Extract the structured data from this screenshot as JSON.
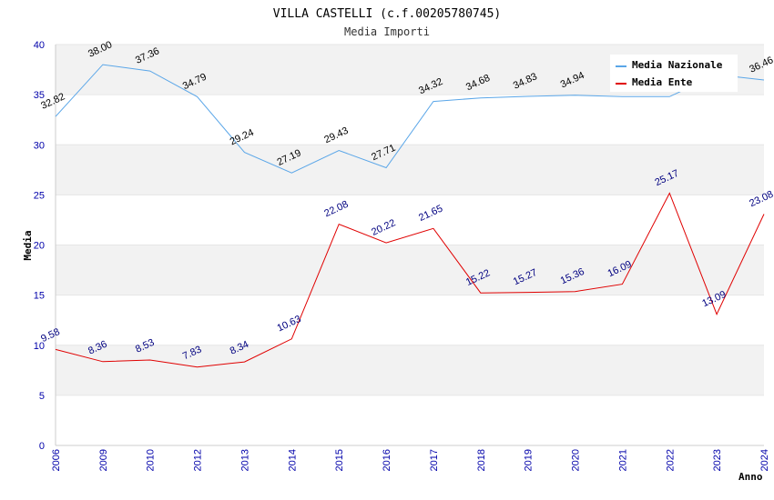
{
  "chart_data": {
    "type": "line",
    "title": "VILLA CASTELLI (c.f.00205780745)",
    "subtitle": "Media Importi",
    "ylabel": "Media",
    "xlabel": "Anno",
    "ylim": [
      0,
      40
    ],
    "yticks": [
      0,
      5,
      10,
      15,
      20,
      25,
      30,
      35,
      40
    ],
    "categories": [
      "2006",
      "2009",
      "2010",
      "2012",
      "2013",
      "2014",
      "2015",
      "2016",
      "2017",
      "2018",
      "2019",
      "2020",
      "2021",
      "2022",
      "2023",
      "2024"
    ],
    "series": [
      {
        "name": "Media Nazionale",
        "color": "#5aa6e8",
        "values": [
          32.82,
          38.0,
          37.36,
          34.79,
          29.24,
          27.19,
          29.43,
          27.71,
          34.32,
          34.68,
          34.83,
          34.94,
          34.8,
          34.8,
          37.0,
          36.46
        ],
        "labels": [
          "32.82",
          "38.00",
          "37.36",
          "34.79",
          "29.24",
          "27.19",
          "29.43",
          "27.71",
          "34.32",
          "34.68",
          "34.83",
          "34.94",
          "",
          "",
          "",
          "36.46"
        ]
      },
      {
        "name": "Media Ente",
        "color": "#e00000",
        "values": [
          9.58,
          8.36,
          8.53,
          7.83,
          8.34,
          10.63,
          22.08,
          20.22,
          21.65,
          15.22,
          15.27,
          15.36,
          16.09,
          25.17,
          13.09,
          23.08
        ],
        "labels": [
          "9.58",
          "8.36",
          "8.53",
          "7.83",
          "8.34",
          "10.63",
          "22.08",
          "20.22",
          "21.65",
          "15.22",
          "15.27",
          "15.36",
          "16.09",
          "25.17",
          "13.09",
          "23.08"
        ]
      }
    ],
    "legend": "top-right",
    "grid": true
  }
}
